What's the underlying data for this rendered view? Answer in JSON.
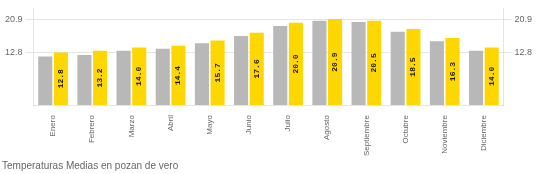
{
  "chart_data": {
    "type": "bar",
    "title": "Temperaturas Medias en pozan de vero",
    "categories": [
      "Enero",
      "Febrero",
      "Marzo",
      "Abril",
      "Mayo",
      "Junio",
      "Julio",
      "Agosto",
      "Septiembre",
      "Octubre",
      "Noviembre",
      "Diciembre"
    ],
    "series": [
      {
        "color": "#B8B8B8",
        "values": [
          11.8,
          12.2,
          13.2,
          13.7,
          15.0,
          16.8,
          19.2,
          20.5,
          20.2,
          17.8,
          15.5,
          13.2
        ]
      },
      {
        "color": "#FFD700",
        "values": [
          12.8,
          13.2,
          14.0,
          14.4,
          15.7,
          17.6,
          20.0,
          20.9,
          20.5,
          18.5,
          16.3,
          14.0
        ],
        "value_labels": [
          "12.8",
          "13.2",
          "14.0",
          "14.4",
          "15.7",
          "17.6",
          "20.0",
          "20.9",
          "20.5",
          "18.5",
          "16.3",
          "14.0"
        ],
        "data_labels": true
      }
    ],
    "ylim": [
      0.0,
      23.5
    ],
    "yticks": [
      12.8,
      20.9
    ],
    "y2lim": [
      0.0,
      23.5
    ],
    "y2ticks": [
      12.8,
      20.9
    ],
    "grid": true
  }
}
